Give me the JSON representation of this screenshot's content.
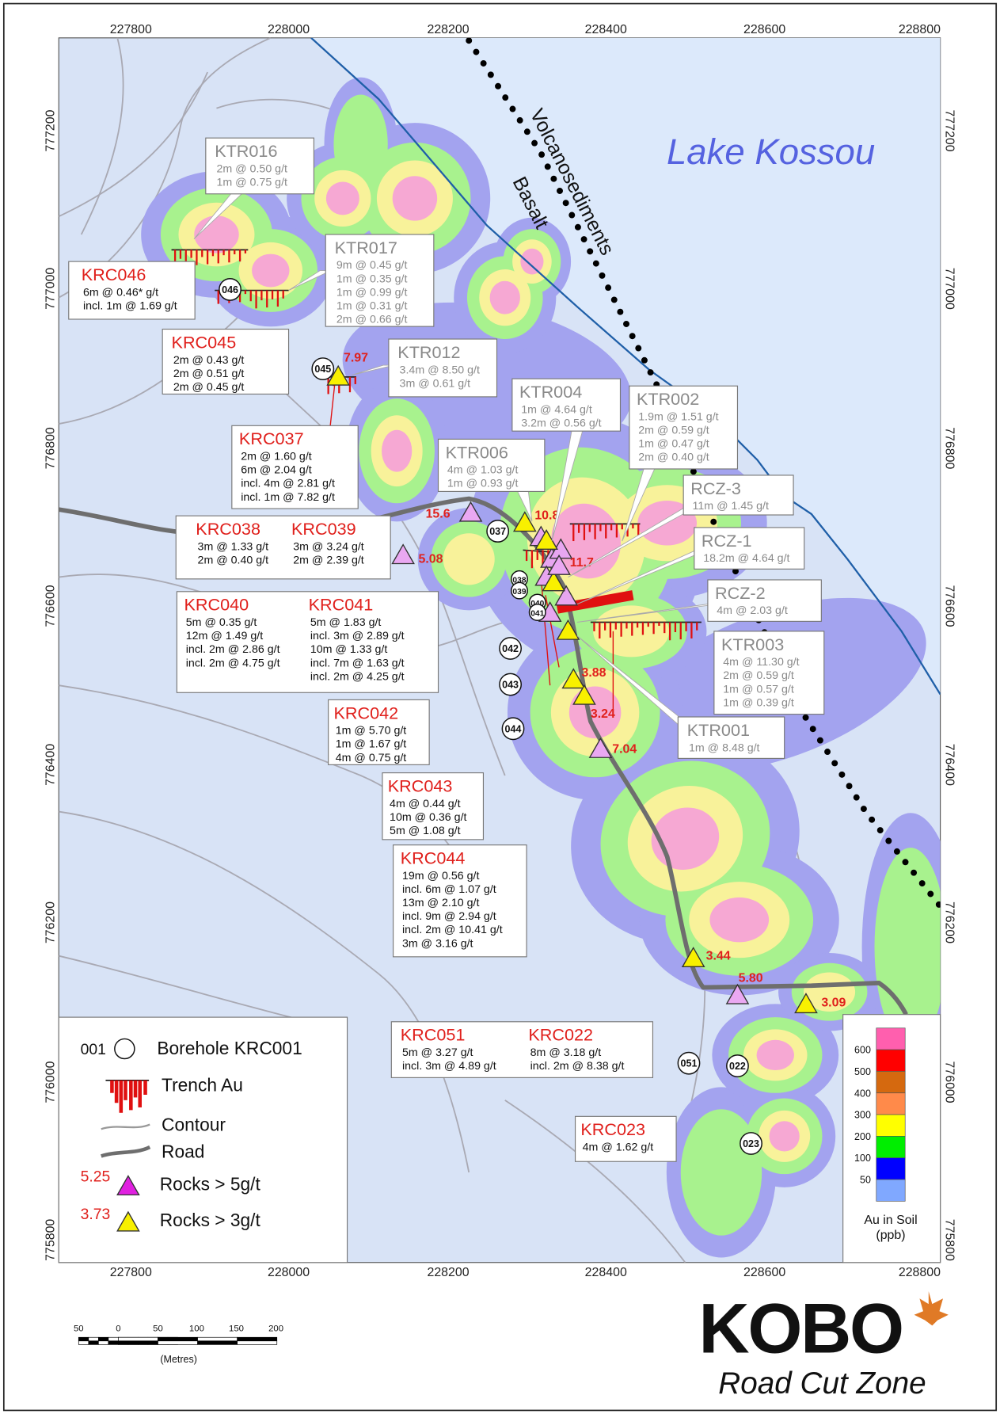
{
  "map_grid": {
    "easting": [
      "227800",
      "228000",
      "228200",
      "228400",
      "228600",
      "228800"
    ],
    "northing": [
      "777200",
      "777000",
      "776800",
      "776600",
      "776400",
      "776200",
      "776000",
      "775800"
    ]
  },
  "lake_label": "Lake Kossou",
  "geology_labels": [
    "Volcanosediments",
    "Basalt"
  ],
  "callouts": [
    {
      "title": "KTR016",
      "lines": [
        "2m @ 0.50 g/t",
        "1m @ 0.75 g/t"
      ]
    },
    {
      "title": "KRC046",
      "lines": [
        "6m @ 0.46* g/t",
        "incl. 1m @ 1.69 g/t"
      ]
    },
    {
      "title": "KTR017",
      "lines": [
        "9m @ 0.45 g/t",
        "1m @ 0.35 g/t",
        "1m @ 0.99 g/t",
        "1m @ 0.31 g/t",
        "2m @ 0.66 g/t"
      ]
    },
    {
      "title": "KRC045",
      "lines": [
        "2m @ 0.43 g/t",
        "2m @ 0.51 g/t",
        "2m @ 0.45 g/t"
      ]
    },
    {
      "title": "KTR012",
      "lines": [
        "3.4m @ 8.50 g/t",
        "3m @ 0.61 g/t"
      ]
    },
    {
      "title": "KTR004",
      "lines": [
        "1m @ 4.64 g/t",
        "3.2m @ 0.56 g/t"
      ]
    },
    {
      "title": "KTR002",
      "lines": [
        "1.9m @ 1.51 g/t",
        "2m @ 0.59 g/t",
        "1m @ 0.47 g/t",
        "2m @ 0.40 g/t"
      ]
    },
    {
      "title": "KRC037",
      "lines": [
        "2m @ 1.60 g/t",
        "6m @ 2.04 g/t",
        "incl. 4m @ 2.81 g/t",
        "incl. 1m @ 7.82 g/t"
      ]
    },
    {
      "title": "KTR006",
      "lines": [
        "4m @ 1.03 g/t",
        "1m @ 0.93 g/t"
      ]
    },
    {
      "title": "RCZ-3",
      "lines": [
        "11m @ 1.45 g/t"
      ]
    },
    {
      "title": "RCZ-1",
      "lines": [
        "18.2m @ 4.64 g/t"
      ]
    },
    {
      "title": "RCZ-2",
      "lines": [
        "4m @ 2.03 g/t"
      ]
    },
    {
      "title": "KTR003",
      "lines": [
        "4m @ 11.30 g/t",
        "2m @ 0.59 g/t",
        "1m @ 0.57 g/t",
        "1m @ 0.39 g/t"
      ]
    },
    {
      "title": "KTR001",
      "lines": [
        "1m @ 8.48 g/t"
      ]
    },
    {
      "title": "KRC038",
      "lines": [
        "3m @ 1.33 g/t",
        "2m @ 0.40 g/t"
      ]
    },
    {
      "title": "KRC039",
      "lines": [
        "3m @ 3.24 g/t",
        "2m @ 2.39 g/t"
      ]
    },
    {
      "title": "KRC040",
      "lines": [
        "5m @ 0.35 g/t",
        "12m @ 1.49 g/t",
        "incl. 2m @ 2.86 g/t",
        "incl. 2m @ 4.75 g/t"
      ]
    },
    {
      "title": "KRC041",
      "lines": [
        "5m @ 1.83 g/t",
        "incl. 3m @ 2.89 g/t",
        "10m @ 1.33 g/t",
        "incl. 7m @ 1.63 g/t",
        "incl. 2m @ 4.25 g/t"
      ]
    },
    {
      "title": "KRC042",
      "lines": [
        "1m @ 5.70 g/t",
        "1m @ 1.67 g/t",
        "4m @ 0.75 g/t"
      ]
    },
    {
      "title": "KRC043",
      "lines": [
        "4m @ 0.44 g/t",
        "10m @ 0.36 g/t",
        "5m @ 1.08 g/t"
      ]
    },
    {
      "title": "KRC044",
      "lines": [
        "19m @ 0.56 g/t",
        "incl. 6m @ 1.07 g/t",
        "13m @ 2.10 g/t",
        "incl. 9m @ 2.94 g/t",
        "incl. 2m @ 10.41 g/t",
        "3m @ 3.16 g/t"
      ]
    },
    {
      "title": "KRC051",
      "lines": [
        "5m @ 3.27 g/t",
        "incl. 3m @ 4.89 g/t"
      ]
    },
    {
      "title": "KRC022",
      "lines": [
        "8m @ 3.18 g/t",
        "incl. 2m @ 8.38 g/t"
      ]
    },
    {
      "title": "KRC023",
      "lines": [
        "4m @ 1.62 g/t"
      ]
    }
  ],
  "boreholes": [
    "046",
    "045",
    "037",
    "038",
    "039",
    "040",
    "041",
    "042",
    "043",
    "044",
    "051",
    "022",
    "023"
  ],
  "rocks_over_5": [
    "15.6",
    "5.08",
    "11.7",
    "7.04",
    "5.80"
  ],
  "rocks_over_3": [
    "7.97",
    "10.8",
    "3.88",
    "3.24",
    "3.44",
    "3.09"
  ],
  "legend": {
    "borehole_code": "001",
    "borehole": "Borehole KRC001",
    "trench": "Trench Au",
    "contour": "Contour",
    "road": "Road",
    "rock5_example": "5.25",
    "rock5": "Rocks > 5g/t",
    "rock3_example": "3.73",
    "rock3": "Rocks > 3g/t"
  },
  "soil_scale": {
    "labels": [
      "600",
      "500",
      "400",
      "300",
      "200",
      "100",
      "50"
    ],
    "colors": [
      "#ff5fae",
      "#ff0000",
      "#d5690f",
      "#ff8a4a",
      "#ffff00",
      "#00ee00",
      "#0000ff",
      "#80a8ff"
    ],
    "title": "Au in Soil",
    "unit": "(ppb)"
  },
  "scale_bar": {
    "labels": [
      "50",
      "0",
      "50",
      "100",
      "150",
      "200"
    ],
    "unit": "(Metres)"
  },
  "logo": {
    "brand": "KOBO",
    "subtitle": "Road Cut Zone"
  }
}
